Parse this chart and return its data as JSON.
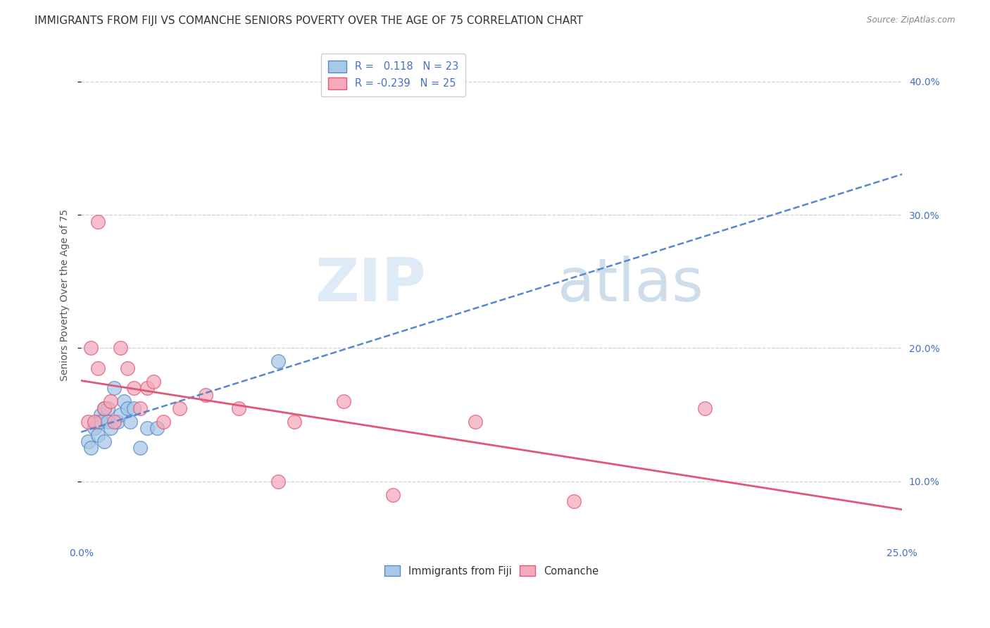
{
  "title": "IMMIGRANTS FROM FIJI VS COMANCHE SENIORS POVERTY OVER THE AGE OF 75 CORRELATION CHART",
  "source": "Source: ZipAtlas.com",
  "ylabel": "Seniors Poverty Over the Age of 75",
  "legend_labels": [
    "Immigrants from Fiji",
    "Comanche"
  ],
  "fiji_R": "0.118",
  "fiji_N": "23",
  "comanche_R": "-0.239",
  "comanche_N": "25",
  "fiji_color": "#a8c8e8",
  "comanche_color": "#f4aabb",
  "fiji_line_color": "#5588cc",
  "comanche_line_color": "#e05878",
  "background_color": "#ffffff",
  "grid_color": "#cccccc",
  "xlim": [
    0.0,
    0.25
  ],
  "ylim": [
    0.055,
    0.425
  ],
  "right_yticks": [
    0.1,
    0.2,
    0.3,
    0.4
  ],
  "fiji_x": [
    0.002,
    0.003,
    0.004,
    0.005,
    0.005,
    0.006,
    0.006,
    0.007,
    0.007,
    0.008,
    0.008,
    0.009,
    0.01,
    0.011,
    0.012,
    0.013,
    0.014,
    0.015,
    0.016,
    0.018,
    0.02,
    0.023,
    0.06
  ],
  "fiji_y": [
    0.13,
    0.125,
    0.14,
    0.145,
    0.135,
    0.15,
    0.145,
    0.155,
    0.13,
    0.155,
    0.145,
    0.14,
    0.17,
    0.145,
    0.15,
    0.16,
    0.155,
    0.145,
    0.155,
    0.125,
    0.14,
    0.14,
    0.19
  ],
  "comanche_x": [
    0.002,
    0.003,
    0.004,
    0.005,
    0.005,
    0.007,
    0.009,
    0.01,
    0.012,
    0.014,
    0.016,
    0.018,
    0.02,
    0.022,
    0.025,
    0.03,
    0.038,
    0.048,
    0.06,
    0.065,
    0.08,
    0.095,
    0.12,
    0.15,
    0.19
  ],
  "comanche_y": [
    0.145,
    0.2,
    0.145,
    0.295,
    0.185,
    0.155,
    0.16,
    0.145,
    0.2,
    0.185,
    0.17,
    0.155,
    0.17,
    0.175,
    0.145,
    0.155,
    0.165,
    0.155,
    0.1,
    0.145,
    0.16,
    0.09,
    0.145,
    0.085,
    0.155
  ],
  "watermark_zip": "ZIP",
  "watermark_atlas": "atlas",
  "title_fontsize": 11,
  "axis_label_fontsize": 10,
  "tick_fontsize": 10,
  "legend_fontsize": 10.5
}
